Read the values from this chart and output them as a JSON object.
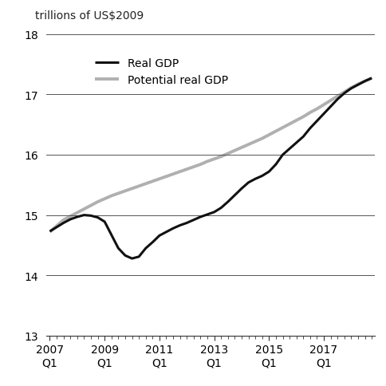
{
  "ylabel": "trillions of US$2009",
  "ylim": [
    13,
    18
  ],
  "yticks": [
    13,
    14,
    15,
    16,
    17,
    18
  ],
  "xtick_labels": [
    "2007\nQ1",
    "2009\nQ1",
    "2011\nQ1",
    "2013\nQ1",
    "2015\nQ1",
    "2017\nQ1"
  ],
  "real_gdp": [
    14.73,
    14.8,
    14.87,
    14.93,
    14.97,
    15.0,
    14.99,
    14.96,
    14.89,
    14.67,
    14.45,
    14.33,
    14.28,
    14.31,
    14.45,
    14.55,
    14.66,
    14.72,
    14.78,
    14.83,
    14.87,
    14.92,
    14.97,
    15.01,
    15.05,
    15.12,
    15.22,
    15.33,
    15.44,
    15.54,
    15.6,
    15.65,
    15.72,
    15.84,
    16.0,
    16.1,
    16.2,
    16.3,
    16.44,
    16.56,
    16.68,
    16.8,
    16.92,
    17.02,
    17.1,
    17.16,
    17.22,
    17.27
  ],
  "potential_gdp": [
    14.72,
    14.82,
    14.92,
    14.98,
    15.04,
    15.1,
    15.16,
    15.22,
    15.27,
    15.32,
    15.36,
    15.4,
    15.44,
    15.48,
    15.52,
    15.56,
    15.6,
    15.64,
    15.68,
    15.72,
    15.76,
    15.8,
    15.84,
    15.89,
    15.93,
    15.97,
    16.02,
    16.07,
    16.12,
    16.17,
    16.22,
    16.27,
    16.33,
    16.39,
    16.45,
    16.51,
    16.57,
    16.63,
    16.7,
    16.76,
    16.83,
    16.9,
    16.97,
    17.04,
    17.11,
    17.17,
    17.22,
    17.27
  ],
  "real_gdp_color": "#111111",
  "potential_gdp_color": "#b0b0b0",
  "real_gdp_linewidth": 2.2,
  "potential_gdp_linewidth": 2.8,
  "legend_real_gdp": "Real GDP",
  "legend_potential_gdp": "Potential real GDP",
  "grid_color": "#555555",
  "grid_linewidth": 0.7,
  "background_color": "#ffffff",
  "bottom_spine_color": "#333333"
}
